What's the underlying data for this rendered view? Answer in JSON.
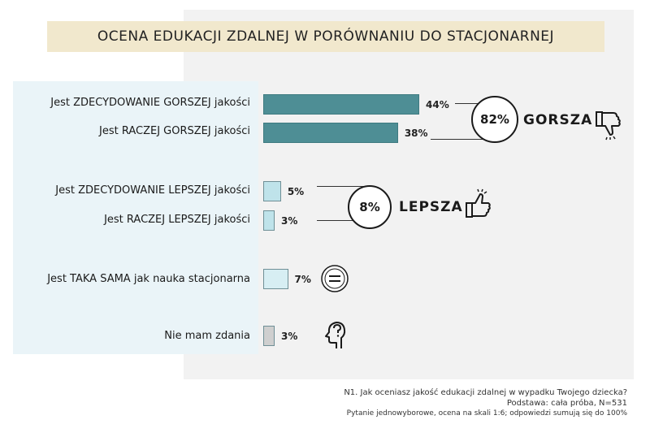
{
  "title": "OCENA EDUKACJI ZDALNEJ W PORÓWNANIU DO STACJONARNEJ",
  "chart_data": {
    "type": "bar",
    "orientation": "horizontal",
    "xlim": [
      0,
      44
    ],
    "categories": [
      "Jest ZDECYDOWANIE GORSZEJ jakości",
      "Jest RACZEJ GORSZEJ jakości",
      "Jest ZDECYDOWANIE LEPSZEJ jakości",
      "Jest RACZEJ LEPSZEJ jakości",
      "Jest TAKA SAMA jak nauka stacjonarna",
      "Nie mam zdania"
    ],
    "values": [
      44,
      38,
      5,
      3,
      7,
      3
    ],
    "value_labels": [
      "44%",
      "38%",
      "5%",
      "3%",
      "7%",
      "3%"
    ],
    "bar_colors": [
      "#4e8e95",
      "#4e8e95",
      "#bfe3ea",
      "#bfe3ea",
      "#d7eef3",
      "#cfcfcf"
    ],
    "groups": [
      {
        "label": "GORSZA",
        "total": "82%",
        "icon": "thumbs-down-icon"
      },
      {
        "label": "LEPSZA",
        "total": "8%",
        "icon": "thumbs-up-icon"
      }
    ],
    "extra_icons": [
      "equals-icon",
      "head-question-icon"
    ]
  },
  "notes": {
    "question": "N1. Jak oceniasz jakość edukacji zdalnej w wypadku Twojego dziecka?",
    "base": "Podstawa: cała próba, N=531",
    "method": "Pytanie jednowyborowe, ocena na skali 1:6; odpowiedzi sumują się do 100%"
  }
}
